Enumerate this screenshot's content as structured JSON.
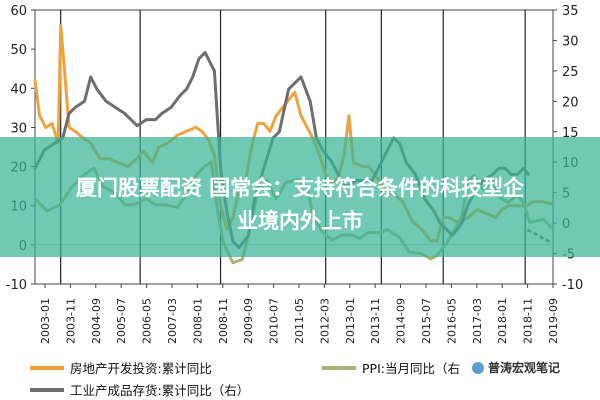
{
  "headline": {
    "line1": "厦门股票配资 国常会：支持符合条件的科技型企",
    "line2": "业境内外上市"
  },
  "watermark": "普涛宏观笔记",
  "colors": {
    "orange": "#f0a23f",
    "dark_gray": "#6e6e6e",
    "olive": "#aab27a",
    "dotted": "#666666",
    "banner": "#38b496"
  },
  "chart_data": {
    "type": "line",
    "x_ticks": [
      "2003-01",
      "2003-11",
      "2004-09",
      "2005-07",
      "2006-05",
      "2007-03",
      "2008-01",
      "2008-11",
      "2009-09",
      "2010-07",
      "2011-05",
      "2012-03",
      "2013-01",
      "2013-11",
      "2014-09",
      "2015-07",
      "2016-05",
      "2017-03",
      "2018-01",
      "2018-11",
      "2019-09"
    ],
    "y_left": {
      "ticks": [
        -10,
        0,
        10,
        20,
        30,
        40,
        50,
        60
      ],
      "range": [
        -10,
        60
      ]
    },
    "y_right": {
      "ticks": [
        -10,
        -5,
        0,
        5,
        10,
        15,
        20,
        25,
        30,
        35
      ],
      "range": [
        -10,
        35
      ]
    },
    "x_range": [
      2003.0,
      2019.75
    ],
    "series": [
      {
        "name": "房地产开发投资:累计同比",
        "axis": "left",
        "color": "orange",
        "points": [
          [
            2003.0,
            42
          ],
          [
            2003.15,
            33
          ],
          [
            2003.35,
            30
          ],
          [
            2003.55,
            31
          ],
          [
            2003.75,
            26
          ],
          [
            2003.83,
            56
          ],
          [
            2003.95,
            45
          ],
          [
            2004.1,
            30
          ],
          [
            2004.3,
            29
          ],
          [
            2004.6,
            27
          ],
          [
            2004.8,
            26
          ],
          [
            2005.1,
            22
          ],
          [
            2005.4,
            22
          ],
          [
            2005.7,
            21
          ],
          [
            2006.0,
            20
          ],
          [
            2006.3,
            22
          ],
          [
            2006.5,
            24
          ],
          [
            2006.8,
            21
          ],
          [
            2007.0,
            25
          ],
          [
            2007.3,
            26
          ],
          [
            2007.6,
            28
          ],
          [
            2007.9,
            29
          ],
          [
            2008.2,
            30
          ],
          [
            2008.4,
            29
          ],
          [
            2008.6,
            27
          ],
          [
            2008.8,
            23
          ],
          [
            2009.0,
            10
          ],
          [
            2009.2,
            4
          ],
          [
            2009.4,
            7
          ],
          [
            2009.6,
            14
          ],
          [
            2009.8,
            16
          ],
          [
            2010.0,
            25
          ],
          [
            2010.2,
            31
          ],
          [
            2010.4,
            31
          ],
          [
            2010.6,
            29
          ],
          [
            2010.8,
            33
          ],
          [
            2011.0,
            35
          ],
          [
            2011.2,
            37
          ],
          [
            2011.4,
            39
          ],
          [
            2011.6,
            33
          ],
          [
            2011.8,
            30
          ],
          [
            2012.0,
            27
          ],
          [
            2012.2,
            23
          ],
          [
            2012.4,
            18
          ],
          [
            2012.6,
            16
          ],
          [
            2012.8,
            17
          ],
          [
            2013.0,
            23
          ],
          [
            2013.15,
            33
          ],
          [
            2013.3,
            21
          ],
          [
            2013.6,
            20
          ],
          [
            2013.8,
            20
          ],
          [
            2014.0,
            18
          ],
          [
            2014.3,
            14
          ],
          [
            2014.6,
            13
          ],
          [
            2014.9,
            11
          ],
          [
            2015.2,
            6
          ],
          [
            2015.5,
            4
          ],
          [
            2015.8,
            1
          ],
          [
            2016.0,
            1
          ],
          [
            2016.2,
            7
          ],
          [
            2016.4,
            7
          ],
          [
            2016.6,
            6
          ],
          [
            2016.8,
            6
          ],
          [
            2017.0,
            7
          ],
          [
            2017.3,
            9
          ],
          [
            2017.6,
            8
          ],
          [
            2017.9,
            7
          ],
          [
            2018.1,
            9
          ],
          [
            2018.3,
            10
          ],
          [
            2018.5,
            10
          ],
          [
            2018.7,
            10
          ],
          [
            2018.9,
            10
          ],
          [
            2019.1,
            11
          ],
          [
            2019.4,
            11
          ],
          [
            2019.7,
            10.5
          ]
        ]
      },
      {
        "name": "PPI:当月同比（右）",
        "axis": "right",
        "color": "olive",
        "points": [
          [
            2003.0,
            4
          ],
          [
            2003.4,
            2
          ],
          [
            2003.8,
            3
          ],
          [
            2004.2,
            6
          ],
          [
            2004.6,
            8
          ],
          [
            2004.9,
            9
          ],
          [
            2005.2,
            6
          ],
          [
            2005.6,
            5
          ],
          [
            2005.9,
            3
          ],
          [
            2006.2,
            3
          ],
          [
            2006.6,
            4
          ],
          [
            2006.9,
            3
          ],
          [
            2007.2,
            3
          ],
          [
            2007.6,
            2.6
          ],
          [
            2007.9,
            4.6
          ],
          [
            2008.2,
            7.8
          ],
          [
            2008.5,
            9.4
          ],
          [
            2008.7,
            10
          ],
          [
            2008.9,
            2
          ],
          [
            2009.1,
            -3.3
          ],
          [
            2009.4,
            -6.5
          ],
          [
            2009.7,
            -6
          ],
          [
            2009.9,
            -2
          ],
          [
            2010.2,
            5
          ],
          [
            2010.5,
            7
          ],
          [
            2010.8,
            4
          ],
          [
            2011.1,
            6.6
          ],
          [
            2011.5,
            7.2
          ],
          [
            2011.8,
            6
          ],
          [
            2012.0,
            1
          ],
          [
            2012.3,
            -1.5
          ],
          [
            2012.6,
            -2.8
          ],
          [
            2012.9,
            -2
          ],
          [
            2013.2,
            -1.9
          ],
          [
            2013.5,
            -2.5
          ],
          [
            2013.8,
            -1.5
          ],
          [
            2014.1,
            -1.6
          ],
          [
            2014.4,
            -1.1
          ],
          [
            2014.8,
            -2.4
          ],
          [
            2015.1,
            -4.8
          ],
          [
            2015.5,
            -5
          ],
          [
            2015.8,
            -5.9
          ],
          [
            2016.0,
            -5.3
          ],
          [
            2016.3,
            -3.4
          ],
          [
            2016.6,
            -0.8
          ],
          [
            2016.8,
            1
          ],
          [
            2017.0,
            6.9
          ],
          [
            2017.2,
            7.8
          ],
          [
            2017.5,
            5.5
          ],
          [
            2017.8,
            6.9
          ],
          [
            2018.0,
            4.3
          ],
          [
            2018.3,
            3.4
          ],
          [
            2018.6,
            4.6
          ],
          [
            2018.8,
            3.3
          ],
          [
            2019.0,
            0.1
          ],
          [
            2019.2,
            0.4
          ],
          [
            2019.45,
            0.6
          ],
          [
            2019.7,
            -0.8
          ]
        ]
      },
      {
        "name": "工业产成品存货:累计同比（右）",
        "axis": "right",
        "color": "dark_gray",
        "points": [
          [
            2003.0,
            9
          ],
          [
            2003.3,
            12
          ],
          [
            2003.6,
            13
          ],
          [
            2003.9,
            14
          ],
          [
            2004.1,
            18
          ],
          [
            2004.3,
            19
          ],
          [
            2004.6,
            20
          ],
          [
            2004.8,
            24
          ],
          [
            2005.0,
            22
          ],
          [
            2005.3,
            20
          ],
          [
            2005.6,
            19
          ],
          [
            2005.9,
            18
          ],
          [
            2006.1,
            17
          ],
          [
            2006.3,
            16
          ],
          [
            2006.6,
            17
          ],
          [
            2006.9,
            17
          ],
          [
            2007.1,
            18
          ],
          [
            2007.4,
            19
          ],
          [
            2007.7,
            21
          ],
          [
            2007.9,
            22
          ],
          [
            2008.1,
            24
          ],
          [
            2008.3,
            27
          ],
          [
            2008.5,
            28
          ],
          [
            2008.8,
            25
          ],
          [
            2009.0,
            9
          ],
          [
            2009.2,
            2
          ],
          [
            2009.4,
            -3
          ],
          [
            2009.6,
            -4
          ],
          [
            2009.9,
            -2
          ],
          [
            2010.1,
            4
          ],
          [
            2010.4,
            9
          ],
          [
            2010.7,
            14
          ],
          [
            2010.9,
            15
          ],
          [
            2011.2,
            22
          ],
          [
            2011.4,
            23
          ],
          [
            2011.6,
            24
          ],
          [
            2011.9,
            20
          ],
          [
            2012.1,
            14
          ],
          [
            2012.3,
            12
          ],
          [
            2012.6,
            10
          ],
          [
            2012.9,
            7
          ],
          [
            2013.1,
            6
          ],
          [
            2013.4,
            7
          ],
          [
            2013.7,
            7
          ],
          [
            2013.9,
            7
          ],
          [
            2014.2,
            10
          ],
          [
            2014.4,
            12
          ],
          [
            2014.6,
            14
          ],
          [
            2014.8,
            13
          ],
          [
            2015.0,
            10
          ],
          [
            2015.3,
            8
          ],
          [
            2015.6,
            4
          ],
          [
            2015.9,
            2
          ],
          [
            2016.1,
            0
          ],
          [
            2016.3,
            -1
          ],
          [
            2016.5,
            -2
          ],
          [
            2016.8,
            0
          ],
          [
            2017.0,
            3
          ],
          [
            2017.2,
            5
          ],
          [
            2017.5,
            7
          ],
          [
            2017.8,
            8
          ],
          [
            2018.0,
            9
          ],
          [
            2018.2,
            9
          ],
          [
            2018.4,
            8
          ],
          [
            2018.6,
            8
          ],
          [
            2018.8,
            9
          ],
          [
            2018.95,
            8
          ]
        ]
      },
      {
        "name": "dotted_extension",
        "axis": "right",
        "color": "dotted",
        "dashed": true,
        "points": [
          [
            2018.95,
            -1.2
          ],
          [
            2019.2,
            -1.8
          ],
          [
            2019.45,
            -2.6
          ],
          [
            2019.7,
            -3.2
          ]
        ]
      }
    ],
    "vertical_lines": [
      2003.83,
      2006.4,
      2009.0,
      2012.4,
      2014.2,
      2016.2,
      2018.85
    ],
    "legend": [
      {
        "label": "房地产开发投资:累计同比",
        "color": "orange"
      },
      {
        "label": "PPI:当月同比（右",
        "color": "olive"
      },
      {
        "label": "工业产成品存货:累计同比（右）",
        "color": "dark_gray"
      }
    ]
  }
}
